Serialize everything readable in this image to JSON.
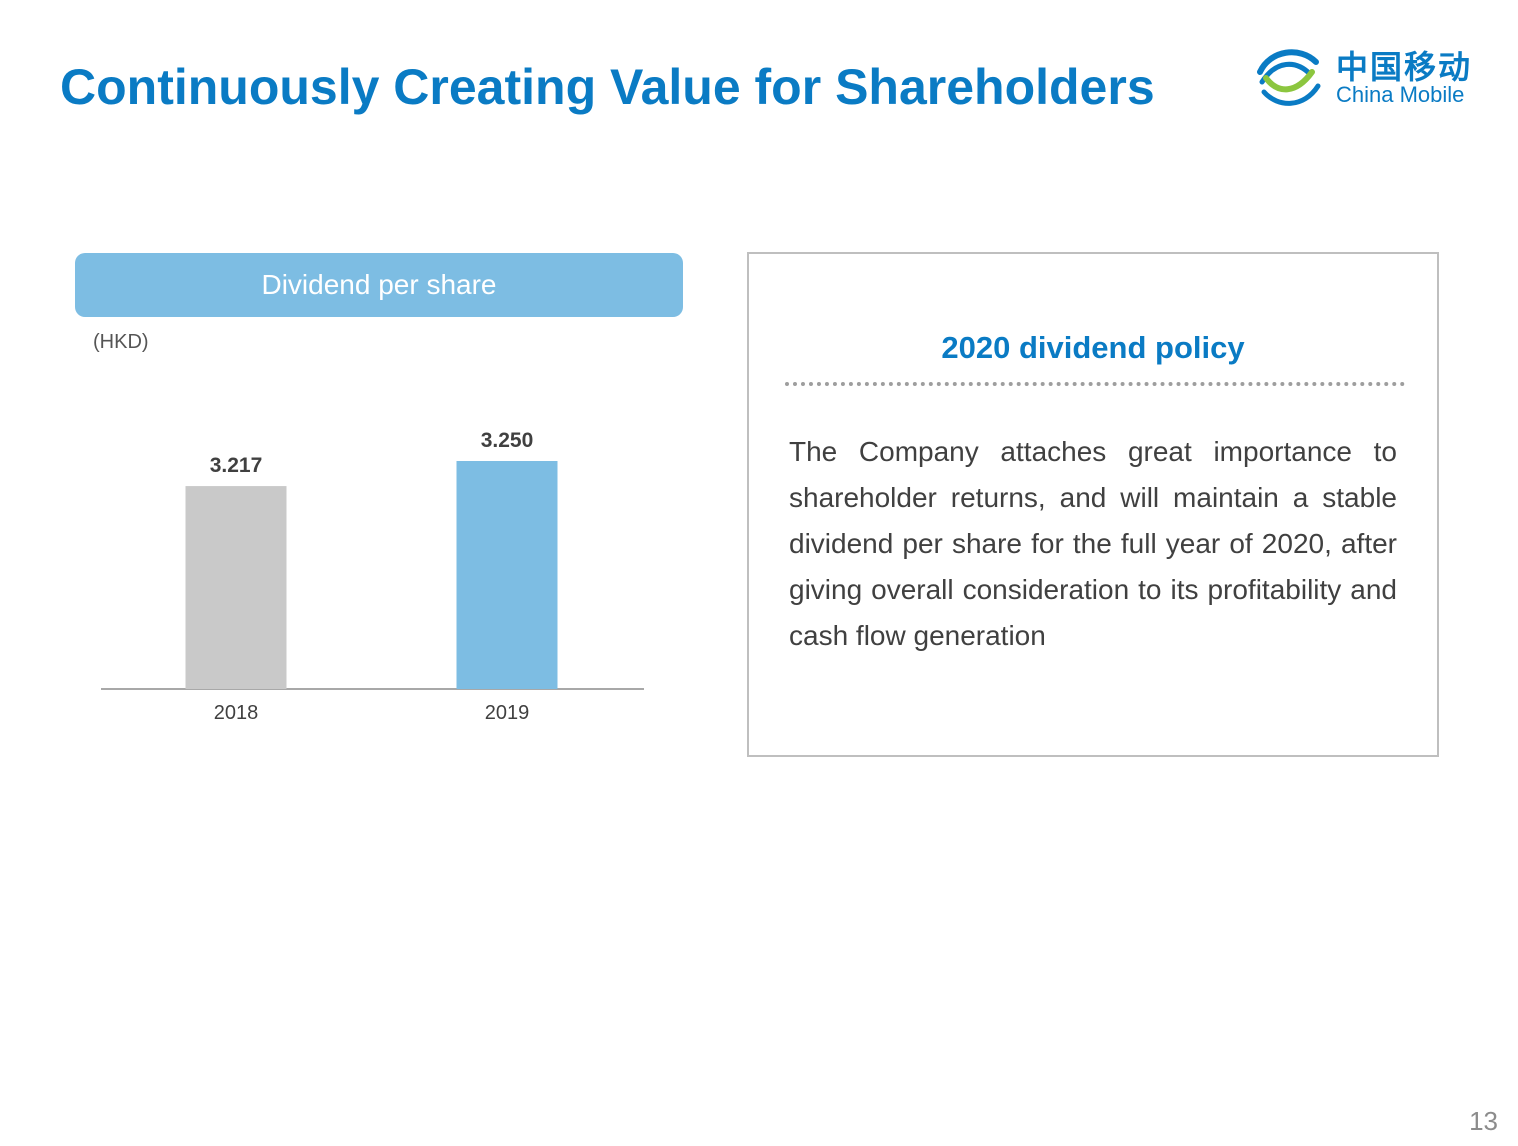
{
  "header": {
    "title": "Continuously Creating Value for Shareholders",
    "logo": {
      "icon": "china-mobile-swirl-icon",
      "name_cn": "中国移动",
      "name_en": "China Mobile"
    }
  },
  "chart_panel": {
    "header_label": "Dividend per share",
    "unit_label": "(HKD)"
  },
  "chart_data": {
    "type": "bar",
    "categories": [
      "2018",
      "2019"
    ],
    "values": [
      3.217,
      3.25
    ],
    "value_labels": [
      "3.217",
      "3.250"
    ],
    "bar_colors": [
      "#c9c9c9",
      "#7dbde3"
    ],
    "title": "Dividend per share",
    "ylabel": "(HKD)",
    "xlabel": "",
    "grid": false,
    "legend": "none"
  },
  "policy": {
    "title": "2020 dividend policy",
    "body": "The Company attaches great importance to shareholder returns, and will maintain a stable dividend per share for the full year of 2020, after giving overall consideration to its profitability and cash flow generation"
  },
  "page_number": "13",
  "colors": {
    "brand_blue": "#0a7bc4",
    "accent_light_blue": "#7dbde3",
    "neutral_gray": "#c9c9c9"
  }
}
